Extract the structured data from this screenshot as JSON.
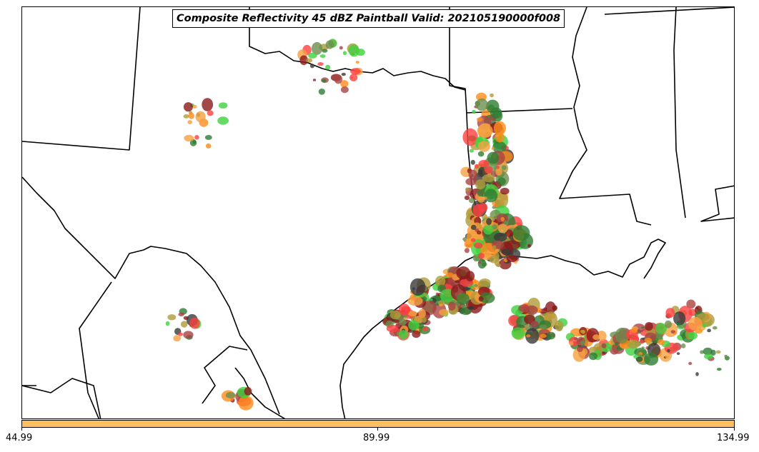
{
  "title": "Composite Reflectivity 45 dBZ Paintball Valid: 202105190000f008",
  "colorbar": {
    "color": "#ffbf60",
    "ticks": [
      "44.99",
      "89.99",
      "134.99"
    ]
  },
  "colors": {
    "coast": "#000000",
    "member_palette": [
      "#2e7d32",
      "#6b8e4e",
      "#ff4040",
      "#ff8c1a",
      "#b09a3a",
      "#8b1a1a",
      "#3a3a3a",
      "#a94444",
      "#3fd13f",
      "#f5a040"
    ]
  }
}
